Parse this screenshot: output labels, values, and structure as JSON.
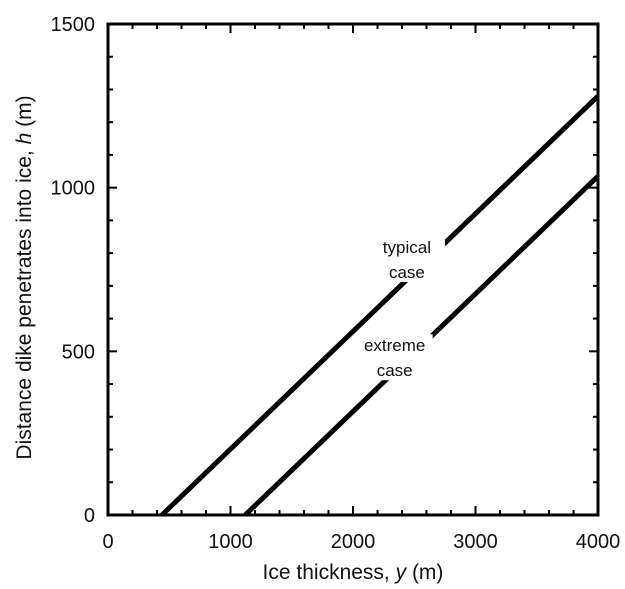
{
  "chart_data": {
    "type": "line",
    "xlabel": "Ice thickness, y (m)",
    "xlabel_parts": {
      "main": "Ice thickness, ",
      "var": "y",
      "unit": " (m)"
    },
    "ylabel": "Distance dike penetrates into ice, h (m)",
    "ylabel_parts": {
      "main": "Distance dike penetrates into ice, ",
      "var": "h",
      "unit": " (m)"
    },
    "xlim": [
      0,
      4000
    ],
    "ylim": [
      0,
      1500
    ],
    "xticks": [
      0,
      1000,
      2000,
      3000,
      4000
    ],
    "xtick_labels": [
      "0",
      "1000",
      "2000",
      "3000",
      "4000"
    ],
    "yticks": [
      0,
      500,
      1000,
      1500
    ],
    "ytick_labels": [
      "0",
      "500",
      "1000",
      "1500"
    ],
    "grid": false,
    "series": [
      {
        "name": "typical case",
        "x": [
          440,
          4000
        ],
        "y": [
          0,
          1280
        ]
      },
      {
        "name": "extreme case",
        "x": [
          1120,
          4000
        ],
        "y": [
          0,
          1035
        ]
      }
    ],
    "annotations": [
      {
        "series": 0,
        "lines": [
          "typical",
          "case"
        ],
        "x": 2440,
        "y": 785
      },
      {
        "series": 1,
        "lines": [
          "extreme",
          "case"
        ],
        "x": 2340,
        "y": 485
      }
    ],
    "line_color": "#000000"
  }
}
